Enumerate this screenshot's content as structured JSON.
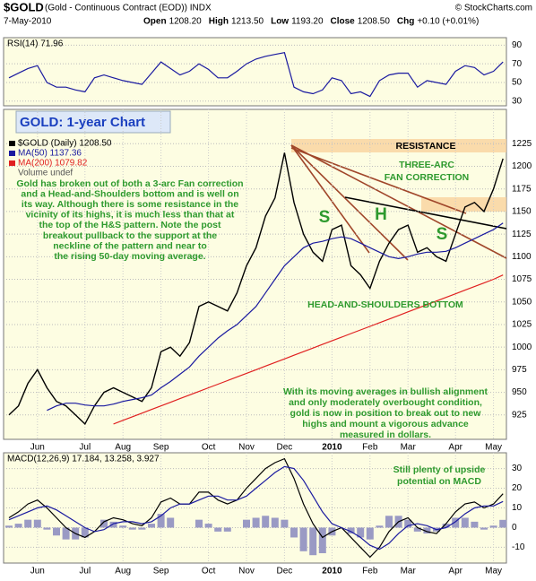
{
  "header": {
    "symbol": "$GOLD",
    "description": "(Gold - Continuous Contract (EOD)) INDX",
    "copyright": "© StockCharts.com",
    "date": "7-May-2010",
    "quote": [
      {
        "label": "Open",
        "value": "1208.20"
      },
      {
        "label": "High",
        "value": "1213.50"
      },
      {
        "label": "Low",
        "value": "1193.20"
      },
      {
        "label": "Close",
        "value": "1208.50"
      },
      {
        "label": "Chg",
        "value": "+0.10 (+0.01%)"
      }
    ]
  },
  "chart_data": [
    {
      "type": "line",
      "label": "RSI(14) 71.96",
      "ylim": [
        25,
        98
      ],
      "yticks": [
        30,
        50,
        70,
        90
      ],
      "grid": true,
      "series": [
        {
          "color": "#1a1aa0",
          "values": [
            55,
            60,
            65,
            68,
            50,
            45,
            45,
            42,
            40,
            55,
            58,
            55,
            52,
            50,
            48,
            60,
            72,
            65,
            58,
            62,
            70,
            64,
            55,
            55,
            62,
            70,
            75,
            78,
            80,
            82,
            45,
            40,
            38,
            42,
            55,
            52,
            38,
            40,
            35,
            52,
            58,
            60,
            60,
            45,
            52,
            50,
            48,
            62,
            68,
            66,
            58,
            62,
            71.96
          ]
        }
      ]
    },
    {
      "type": "line",
      "title": "GOLD: 1-year Chart",
      "ylim": [
        898,
        1263
      ],
      "yticks": [
        925,
        950,
        975,
        1000,
        1025,
        1050,
        1075,
        1100,
        1125,
        1150,
        1175,
        1200,
        1225
      ],
      "grid": true,
      "categories": [
        null,
        null,
        null,
        "Jun",
        null,
        null,
        null,
        null,
        "Jul",
        null,
        null,
        null,
        "Aug",
        null,
        null,
        null,
        "Sep",
        null,
        null,
        null,
        null,
        "Oct",
        null,
        null,
        null,
        "Nov",
        null,
        null,
        null,
        "Dec",
        null,
        null,
        null,
        null,
        "2010",
        null,
        null,
        null,
        "Feb",
        null,
        null,
        null,
        "Mar",
        null,
        null,
        null,
        null,
        "Apr",
        null,
        null,
        null,
        "May",
        null
      ],
      "legend_extra": "Volume undef",
      "series": [
        {
          "name": "$GOLD (Daily) 1208.50",
          "color": "#000000",
          "values": [
            925,
            935,
            960,
            975,
            955,
            940,
            935,
            925,
            915,
            935,
            950,
            955,
            950,
            945,
            940,
            955,
            995,
            1000,
            990,
            1005,
            1045,
            1050,
            1045,
            1040,
            1060,
            1090,
            1110,
            1145,
            1165,
            1215,
            1160,
            1125,
            1105,
            1095,
            1130,
            1135,
            1090,
            1080,
            1065,
            1095,
            1115,
            1130,
            1135,
            1105,
            1110,
            1100,
            1095,
            1125,
            1155,
            1160,
            1150,
            1175,
            1208.5
          ]
        },
        {
          "name": "MA(50) 1137.36",
          "color": "#1a1aa0",
          "values": [
            null,
            null,
            null,
            null,
            930,
            935,
            938,
            938,
            936,
            935,
            935,
            937,
            940,
            942,
            944,
            947,
            955,
            962,
            970,
            978,
            990,
            1000,
            1010,
            1018,
            1025,
            1035,
            1045,
            1060,
            1075,
            1090,
            1100,
            1110,
            1115,
            1117,
            1120,
            1122,
            1120,
            1115,
            1110,
            1105,
            1100,
            1098,
            1100,
            1103,
            1105,
            1105,
            1106,
            1110,
            1115,
            1120,
            1125,
            1130,
            1137.36
          ]
        },
        {
          "name": "MA(200) 1079.82",
          "color": "#e02020",
          "values": [
            null,
            null,
            null,
            null,
            null,
            null,
            null,
            null,
            null,
            null,
            null,
            915,
            919,
            923,
            927,
            931,
            935,
            939,
            943,
            947,
            951,
            955,
            959,
            963,
            967,
            971,
            975,
            979,
            983,
            987,
            991,
            995,
            999,
            1003,
            1007,
            1011,
            1015,
            1019,
            1023,
            1027,
            1031,
            1035,
            1039,
            1043,
            1047,
            1051,
            1055,
            1059,
            1063,
            1067,
            1071,
            1075,
            1079.82
          ]
        }
      ],
      "annotations": [
        {
          "color": "#2e9a2e",
          "lines": [
            "Gold has broken out of both a 3-arc Fan correction",
            "and a Head-and-Shoulders bottom and is well on",
            "its way. Although there is some resistance in the",
            "vicinity of its highs, it is much less than that at",
            "the top of the H&S pattern. Note the post",
            "breakout pullback to the support at the",
            "neckline of the pattern and near to",
            "the rising 50-day moving average."
          ]
        },
        {
          "color": "#000000",
          "lines": [
            "RESISTANCE"
          ]
        },
        {
          "color": "#2e9a2e",
          "lines": [
            "THREE-ARC",
            "FAN CORRECTION"
          ]
        },
        {
          "color": "#2e9a2e",
          "lines": [
            "HEAD-AND-SHOULDERS BOTTOM"
          ]
        },
        {
          "color": "#2e9a2e",
          "lines": [
            "S",
            "H",
            "S"
          ]
        },
        {
          "color": "#2e9a2e",
          "lines": [
            "With its moving averages in bullish alignment",
            "and only moderately overbought condition,",
            "gold is now in position to break out to new",
            "highs and mount a vigorous advance",
            "measured in dollars."
          ]
        }
      ]
    },
    {
      "type": "line",
      "label": "MACD(12,26,9) 17.184, 13.258, 3.927",
      "ylim": [
        -18,
        38
      ],
      "yticks": [
        -10,
        0,
        10,
        20,
        30
      ],
      "grid": true,
      "annotations": [
        {
          "color": "#2e9a2e",
          "lines": [
            "Still plenty of upside",
            "potential on MACD"
          ]
        }
      ],
      "series": [
        {
          "style": "bar",
          "color": "#9a9ac4",
          "values": [
            1,
            2,
            4,
            4,
            -1,
            -4,
            -6,
            -6,
            -5,
            0,
            4,
            3,
            1,
            -1,
            -1,
            2,
            7,
            5,
            0,
            0,
            4,
            2,
            -2,
            -2,
            0,
            4,
            5,
            6,
            5,
            4,
            -5,
            -12,
            -14,
            -13,
            -4,
            0,
            -3,
            -5,
            -6,
            1,
            6,
            6,
            4,
            -2,
            -3,
            -2,
            2,
            5,
            5,
            3,
            -1,
            1,
            3.927
          ]
        },
        {
          "color": "#000000",
          "values": [
            5,
            8,
            12,
            14,
            10,
            5,
            0,
            -3,
            -5,
            -2,
            3,
            5,
            4,
            2,
            1,
            5,
            13,
            15,
            12,
            12,
            18,
            18,
            14,
            12,
            14,
            20,
            25,
            30,
            33,
            35,
            25,
            12,
            2,
            -5,
            -2,
            0,
            -5,
            -10,
            -15,
            -10,
            -2,
            3,
            5,
            0,
            -2,
            -3,
            2,
            8,
            12,
            13,
            10,
            12,
            17.184
          ]
        },
        {
          "color": "#1a1aa0",
          "values": [
            4,
            6,
            8,
            10,
            11,
            9,
            6,
            3,
            0,
            -2,
            -1,
            2,
            3,
            3,
            2,
            3,
            6,
            10,
            12,
            12,
            14,
            16,
            16,
            14,
            14,
            16,
            20,
            24,
            28,
            31,
            30,
            24,
            16,
            8,
            2,
            0,
            -2,
            -5,
            -9,
            -11,
            -8,
            -3,
            1,
            2,
            1,
            -1,
            0,
            3,
            7,
            10,
            11,
            11,
            13.258
          ]
        }
      ]
    }
  ]
}
